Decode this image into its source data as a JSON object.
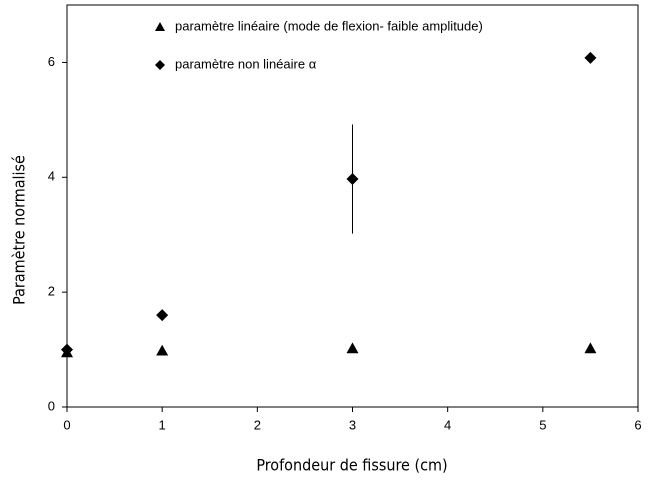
{
  "chart_data": {
    "type": "scatter",
    "xlabel": "Profondeur de fissure (cm)",
    "ylabel": "Paramètre normalisé",
    "xlim": [
      0,
      6
    ],
    "xticks": [
      0,
      1,
      2,
      3,
      4,
      5,
      6
    ],
    "ylim": [
      0,
      7
    ],
    "yticks": [
      0,
      2,
      4,
      6
    ],
    "legend": "top",
    "series": [
      {
        "name": "paramètre linéaire (mode de flexion- faible amplitude)",
        "color": "#000000",
        "marker": "triangle",
        "x": [
          0,
          1,
          3,
          5.5
        ],
        "values": [
          0.95,
          0.98,
          1.02,
          1.02
        ]
      },
      {
        "name": "paramètre non linéaire α",
        "color": "#000000",
        "marker": "diamond",
        "x": [
          0,
          1,
          3,
          5.5
        ],
        "values": [
          1.0,
          1.6,
          3.97,
          6.08
        ],
        "errors": [
          null,
          null,
          0.95,
          null
        ]
      }
    ]
  }
}
